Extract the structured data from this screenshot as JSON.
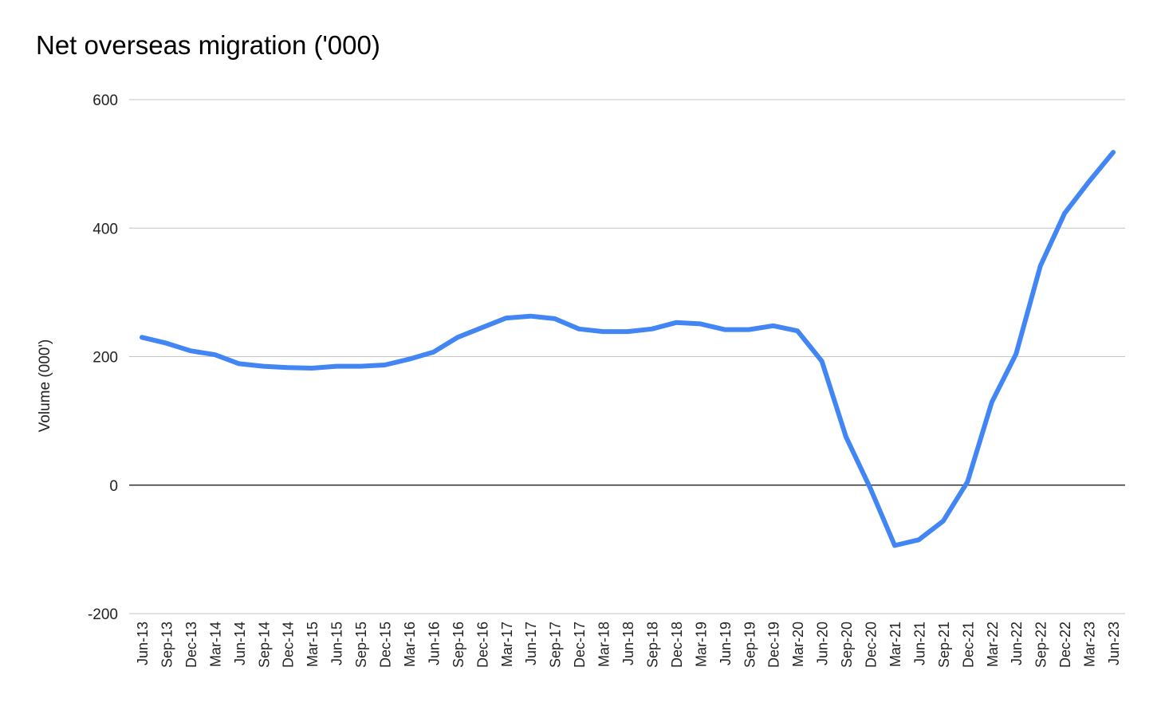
{
  "chart_data": {
    "type": "line",
    "title": "Net overseas migration ('000)",
    "xlabel": "",
    "ylabel": "Volume (000')",
    "ylim": [
      -200,
      600
    ],
    "yticks": [
      -200,
      0,
      200,
      400,
      600
    ],
    "grid": true,
    "legend": "none",
    "categories": [
      "Jun-13",
      "Sep-13",
      "Dec-13",
      "Mar-14",
      "Jun-14",
      "Sep-14",
      "Dec-14",
      "Mar-15",
      "Jun-15",
      "Sep-15",
      "Dec-15",
      "Mar-16",
      "Jun-16",
      "Sep-16",
      "Dec-16",
      "Mar-17",
      "Jun-17",
      "Sep-17",
      "Dec-17",
      "Mar-18",
      "Jun-18",
      "Sep-18",
      "Dec-18",
      "Mar-19",
      "Jun-19",
      "Sep-19",
      "Dec-19",
      "Mar-20",
      "Jun-20",
      "Sep-20",
      "Dec-20",
      "Mar-21",
      "Jun-21",
      "Sep-21",
      "Dec-21",
      "Mar-22",
      "Jun-22",
      "Sep-22",
      "Dec-22",
      "Mar-23",
      "Jun-23"
    ],
    "series": [
      {
        "name": "Net overseas migration",
        "color": "#4285f4",
        "values": [
          230,
          221,
          209,
          203,
          189,
          185,
          183,
          182,
          185,
          185,
          187,
          196,
          207,
          230,
          245,
          260,
          263,
          259,
          243,
          239,
          239,
          243,
          253,
          251,
          242,
          242,
          248,
          240,
          193,
          75,
          -5,
          -94,
          -85,
          -56,
          5,
          129,
          204,
          341,
          423,
          472,
          518
        ]
      }
    ]
  }
}
